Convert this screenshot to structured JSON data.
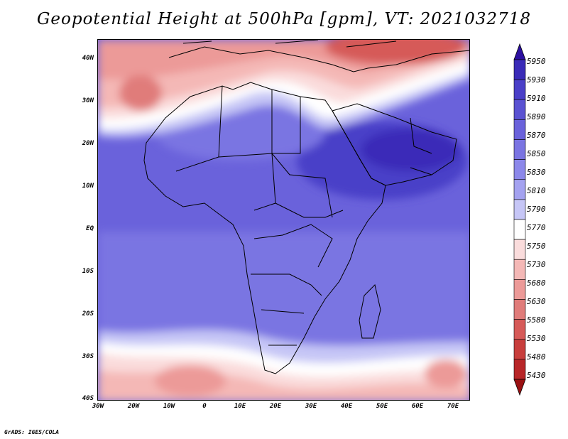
{
  "title": "Geopotential Height at 500hPa [gpm], VT: 2021032718",
  "footer": "GrADS: IGES/COLA",
  "lat_labels": [
    "40N",
    "30N",
    "20N",
    "10N",
    "EQ",
    "10S",
    "20S",
    "30S",
    "40S"
  ],
  "lon_labels": [
    "30W",
    "20W",
    "10W",
    "0",
    "10E",
    "20E",
    "30E",
    "40E",
    "50E",
    "60E",
    "70E"
  ],
  "colorbar": {
    "levels": [
      "5950",
      "5930",
      "5910",
      "5890",
      "5870",
      "5850",
      "5830",
      "5810",
      "5790",
      "5770",
      "5750",
      "5730",
      "5680",
      "5630",
      "5580",
      "5530",
      "5480",
      "5430"
    ],
    "colors": [
      "#2c0fa0",
      "#3a2bb8",
      "#4a3fc8",
      "#5a52d2",
      "#6a62db",
      "#7a74e2",
      "#8c88ea",
      "#a4a2f0",
      "#c6c6f6",
      "#ffffff",
      "#fadcdc",
      "#f4b8b6",
      "#ec9a98",
      "#e07c7a",
      "#d65a58",
      "#c83e3c",
      "#b82628",
      "#9a1012"
    ]
  },
  "map": {
    "lon_range": [
      -30,
      75
    ],
    "lat_range": [
      -40,
      45
    ]
  }
}
